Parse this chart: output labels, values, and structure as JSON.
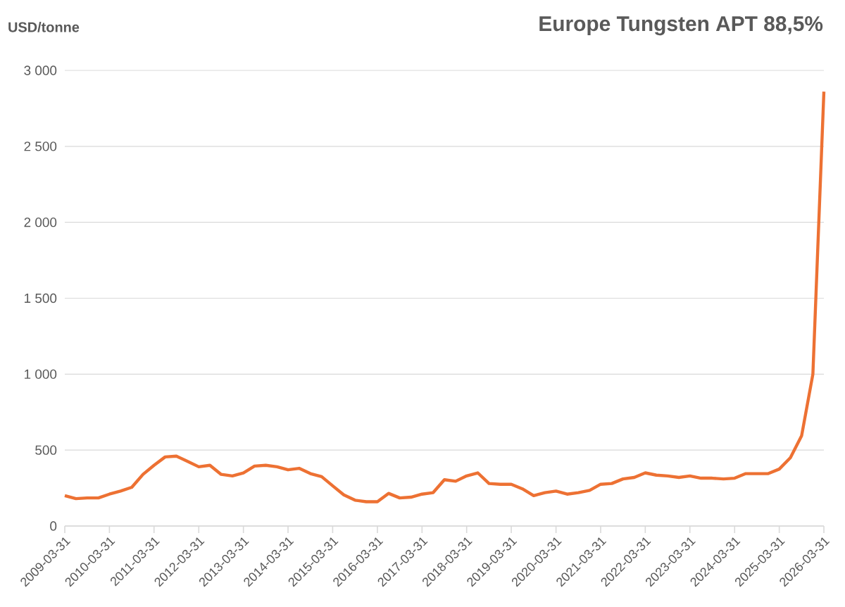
{
  "chart_data": {
    "type": "line",
    "title": "Europe Tungsten APT 88,5%",
    "ylabel": "USD/tonne",
    "x": [
      "2009-03-31",
      "2009-06-30",
      "2009-09-30",
      "2009-12-31",
      "2010-03-31",
      "2010-06-30",
      "2010-09-30",
      "2010-12-31",
      "2011-03-31",
      "2011-06-30",
      "2011-09-30",
      "2011-12-31",
      "2012-03-31",
      "2012-06-30",
      "2012-09-30",
      "2012-12-31",
      "2013-03-31",
      "2013-06-30",
      "2013-09-30",
      "2013-12-31",
      "2014-03-31",
      "2014-06-30",
      "2014-09-30",
      "2014-12-31",
      "2015-03-31",
      "2015-06-30",
      "2015-09-30",
      "2015-12-31",
      "2016-03-31",
      "2016-06-30",
      "2016-09-30",
      "2016-12-31",
      "2017-03-31",
      "2017-06-30",
      "2017-09-30",
      "2017-12-31",
      "2018-03-31",
      "2018-06-30",
      "2018-09-30",
      "2018-12-31",
      "2019-03-31",
      "2019-06-30",
      "2019-09-30",
      "2019-12-31",
      "2020-03-31",
      "2020-06-30",
      "2020-09-30",
      "2020-12-31",
      "2021-03-31",
      "2021-06-30",
      "2021-09-30",
      "2021-12-31",
      "2022-03-31",
      "2022-06-30",
      "2022-09-30",
      "2022-12-31",
      "2023-03-31",
      "2023-06-30",
      "2023-09-30",
      "2023-12-31",
      "2024-03-31",
      "2024-06-30",
      "2024-09-30",
      "2024-12-31",
      "2025-03-31",
      "2025-06-30",
      "2025-09-30",
      "2025-12-31",
      "2026-03-31"
    ],
    "series": [
      {
        "color": "#ed7133",
        "values": [
          200,
          180,
          185,
          185,
          210,
          230,
          255,
          340,
          400,
          455,
          460,
          425,
          390,
          400,
          340,
          330,
          350,
          395,
          400,
          390,
          370,
          380,
          345,
          325,
          265,
          205,
          170,
          160,
          160,
          215,
          185,
          190,
          210,
          220,
          305,
          295,
          330,
          350,
          280,
          275,
          275,
          245,
          200,
          220,
          230,
          210,
          220,
          235,
          275,
          280,
          310,
          320,
          350,
          335,
          330,
          320,
          330,
          315,
          315,
          310,
          315,
          345,
          345,
          345,
          375,
          450,
          595,
          1000,
          2860
        ]
      }
    ],
    "xlim": [
      "2009-03-31",
      "2026-03-31"
    ],
    "xticks": [
      "2009-03-31",
      "2010-03-31",
      "2011-03-31",
      "2012-03-31",
      "2013-03-31",
      "2014-03-31",
      "2015-03-31",
      "2016-03-31",
      "2017-03-31",
      "2018-03-31",
      "2019-03-31",
      "2020-03-31",
      "2021-03-31",
      "2022-03-31",
      "2023-03-31",
      "2024-03-31",
      "2025-03-31",
      "2026-03-31"
    ],
    "ylim": [
      0,
      3000
    ],
    "yticks": [
      0,
      {
        "value": 500,
        "label": "500"
      },
      {
        "value": 1000,
        "label": "1 000"
      },
      {
        "value": 1500,
        "label": "1 500"
      },
      {
        "value": 2000,
        "label": "2 000"
      },
      {
        "value": 2500,
        "label": "2 500"
      },
      {
        "value": 3000,
        "label": "3 000"
      }
    ],
    "grid": "y",
    "legend": false,
    "marker": "none",
    "line_style": "solid"
  }
}
